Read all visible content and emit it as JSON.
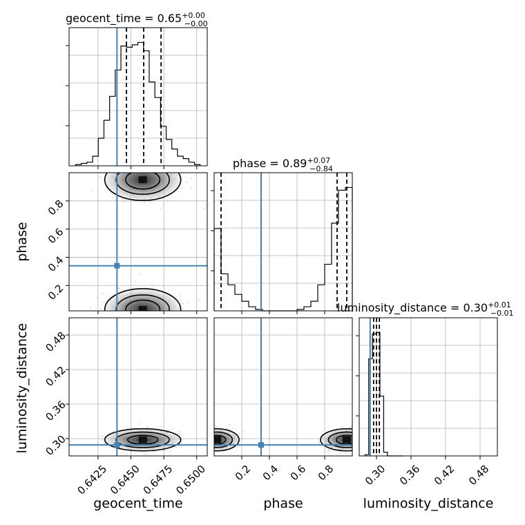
{
  "chart_data": {
    "type": "corner",
    "parameters": [
      "geocent_time",
      "phase",
      "luminosity_distance"
    ],
    "truths": {
      "geocent_time": 0.64394,
      "phase": 0.34,
      "luminosity_distance": 0.289
    },
    "panels": {
      "geocent_time": {
        "title": "geocent_time = 0.65",
        "title_plus": "+0.00",
        "title_minus": "−0.00",
        "xlim": [
          0.6403,
          0.6508
        ],
        "ticks": [
          "0.6425",
          "0.6450",
          "0.6475",
          "0.6500"
        ],
        "tick_values": [
          0.6425,
          0.645,
          0.6475,
          0.65
        ],
        "quantiles": [
          0.64466,
          0.64597,
          0.64729
        ],
        "hist": {
          "edges": [
            0.6408,
            0.64123,
            0.64166,
            0.64209,
            0.64252,
            0.64295,
            0.64338,
            0.64381,
            0.64424,
            0.64467,
            0.6451,
            0.64553,
            0.64596,
            0.64639,
            0.64682,
            0.64725,
            0.64768,
            0.64811,
            0.64854,
            0.64897,
            0.6494,
            0.64983,
            0.65026
          ],
          "counts": [
            1,
            2,
            3,
            8,
            23,
            38,
            58,
            80,
            100,
            99,
            101,
            103,
            96,
            70,
            57,
            33,
            22,
            14,
            8,
            6,
            3,
            1
          ]
        }
      },
      "phase": {
        "title": "phase = 0.89",
        "title_plus": "+0.07",
        "title_minus": "−0.84",
        "xlim": [
          0.0,
          1.0
        ],
        "ticks": [
          "0.2",
          "0.4",
          "0.6",
          "0.8"
        ],
        "tick_values": [
          0.2,
          0.4,
          0.6,
          0.8
        ],
        "yticks": [
          "0.2",
          "0.4",
          "0.6",
          "0.8"
        ],
        "quantiles": [
          0.05,
          0.89,
          0.96
        ],
        "hist": {
          "edges": [
            0.0,
            0.05,
            0.1,
            0.15,
            0.2,
            0.25,
            0.3,
            0.35,
            0.4,
            0.45,
            0.5,
            0.55,
            0.6,
            0.65,
            0.7,
            0.75,
            0.8,
            0.85,
            0.9,
            0.95,
            1.0
          ],
          "counts": [
            60,
            27,
            19,
            12,
            7,
            3,
            1,
            0,
            0,
            0,
            0,
            0,
            1,
            3,
            7,
            19,
            34,
            64,
            88,
            90
          ]
        }
      },
      "luminosity_distance": {
        "title": "luminosity_distance = 0.30",
        "title_plus": "+0.01",
        "title_minus": "−0.01",
        "xlim": [
          0.27,
          0.51
        ],
        "ticks": [
          "0.30",
          "0.36",
          "0.42",
          "0.48"
        ],
        "tick_values": [
          0.3,
          0.36,
          0.42,
          0.48
        ],
        "yticks": [
          "0.30",
          "0.36",
          "0.42",
          "0.48"
        ],
        "quantiles": [
          0.295,
          0.3,
          0.305
        ],
        "hist": {
          "edges": [
            0.28,
            0.2865,
            0.293,
            0.2995,
            0.306,
            0.3125,
            0.319,
            0.3255,
            0.332,
            0.3385,
            0.345
          ],
          "counts": [
            1,
            78,
            98,
            99,
            48,
            3,
            0,
            0,
            0,
            0
          ]
        }
      }
    },
    "axis_labels": {
      "geocent_time": "geocent_time",
      "phase": "phase",
      "luminosity_distance": "luminosity_distance"
    },
    "grid": true
  }
}
